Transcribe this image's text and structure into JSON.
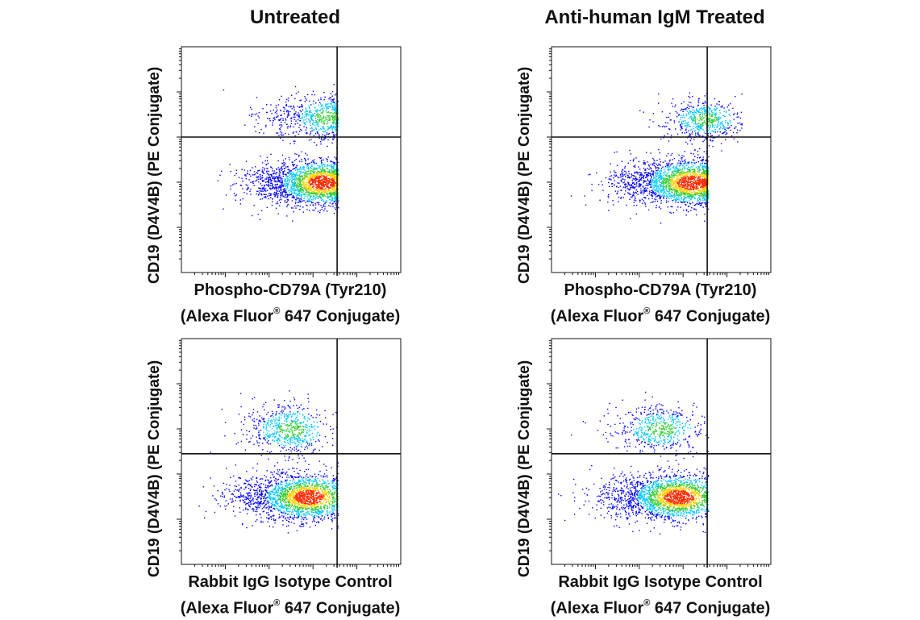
{
  "figure": {
    "columns": [
      "Untreated",
      "Anti-human IgM Treated"
    ],
    "y_label": "CD19 (D4V4B) (PE Conjugate)",
    "registered_mark": "®"
  },
  "chart_data": [
    {
      "type": "scatter",
      "row": 1,
      "col": 1,
      "column_title": "Untreated",
      "xlabel_line1": "Phospho-CD79A (Tyr210)",
      "xlabel_line2_a": "(Alexa Fluor",
      "xlabel_line2_b": " 647 Conjugate)",
      "ylabel": "CD19 (D4V4B) (PE Conjugate)",
      "x_scale": "log",
      "y_scale": "log",
      "xlim_decades": [
        0,
        5
      ],
      "ylim_decades": [
        0,
        5
      ],
      "quadrant_gate": {
        "x": 3.55,
        "y": 3.0
      },
      "populations": [
        {
          "name": "",
          "x_center": 2.5,
          "x_spread": 1.0,
          "y_center": 2.0,
          "y_spread": 0.25,
          "weight": 0.76,
          "peak_x": 3.2
        },
        {
          "name": "",
          "x_center": 2.6,
          "x_spread": 0.9,
          "y_center": 3.45,
          "y_spread": 0.25,
          "weight": 0.24,
          "peak_x": 3.3
        }
      ]
    },
    {
      "type": "scatter",
      "row": 1,
      "col": 2,
      "column_title": "Anti-human IgM Treated",
      "xlabel_line1": "Phospho-CD79A (Tyr210)",
      "xlabel_line2_a": "(Alexa Fluor",
      "xlabel_line2_b": " 647 Conjugate)",
      "ylabel": "CD19 (D4V4B) (PE Conjugate)",
      "x_scale": "log",
      "y_scale": "log",
      "xlim_decades": [
        0,
        5
      ],
      "ylim_decades": [
        0,
        5
      ],
      "quadrant_gate": {
        "x": 3.55,
        "y": 3.0
      },
      "populations": [
        {
          "name": "",
          "x_center": 2.5,
          "x_spread": 1.1,
          "y_center": 2.0,
          "y_spread": 0.25,
          "weight": 0.78,
          "peak_x": 3.2
        },
        {
          "name": "",
          "x_center": 3.4,
          "x_spread": 0.9,
          "y_center": 3.4,
          "y_spread": 0.22,
          "weight": 0.22,
          "peak_x": 3.5
        }
      ]
    },
    {
      "type": "scatter",
      "row": 2,
      "col": 1,
      "column_title": "Untreated",
      "xlabel_line1": "Rabbit IgG Isotype Control",
      "xlabel_line2_a": "(Alexa Fluor",
      "xlabel_line2_b": " 647 Conjugate)",
      "ylabel": "CD19 (D4V4B) (PE Conjugate)",
      "x_scale": "log",
      "y_scale": "log",
      "xlim_decades": [
        0,
        5
      ],
      "ylim_decades": [
        0,
        5
      ],
      "quadrant_gate": {
        "x": 3.55,
        "y": 2.45
      },
      "populations": [
        {
          "name": "",
          "x_center": 2.2,
          "x_spread": 1.1,
          "y_center": 1.5,
          "y_spread": 0.25,
          "weight": 0.76,
          "peak_x": 2.9
        },
        {
          "name": "",
          "x_center": 2.2,
          "x_spread": 1.0,
          "y_center": 3.0,
          "y_spread": 0.28,
          "weight": 0.24,
          "peak_x": 2.5
        }
      ]
    },
    {
      "type": "scatter",
      "row": 2,
      "col": 2,
      "column_title": "Anti-human IgM Treated",
      "xlabel_line1": "Rabbit IgG Isotype Control",
      "xlabel_line2_a": "(Alexa Fluor",
      "xlabel_line2_b": " 647 Conjugate)",
      "ylabel": "CD19 (D4V4B) (PE Conjugate)",
      "x_scale": "log",
      "y_scale": "log",
      "xlim_decades": [
        0,
        5
      ],
      "ylim_decades": [
        0,
        5
      ],
      "quadrant_gate": {
        "x": 3.55,
        "y": 2.45
      },
      "populations": [
        {
          "name": "",
          "x_center": 2.2,
          "x_spread": 1.1,
          "y_center": 1.5,
          "y_spread": 0.25,
          "weight": 0.78,
          "peak_x": 2.9
        },
        {
          "name": "",
          "x_center": 2.3,
          "x_spread": 1.0,
          "y_center": 3.0,
          "y_spread": 0.25,
          "weight": 0.22,
          "peak_x": 2.5
        }
      ]
    }
  ],
  "colors": {
    "axis": "#111111",
    "density_low": "#0000ff",
    "density_mid": "#00c8ff",
    "density_high_1": "#33cc33",
    "density_high_2": "#ffd000",
    "density_peak": "#ff2a00"
  }
}
